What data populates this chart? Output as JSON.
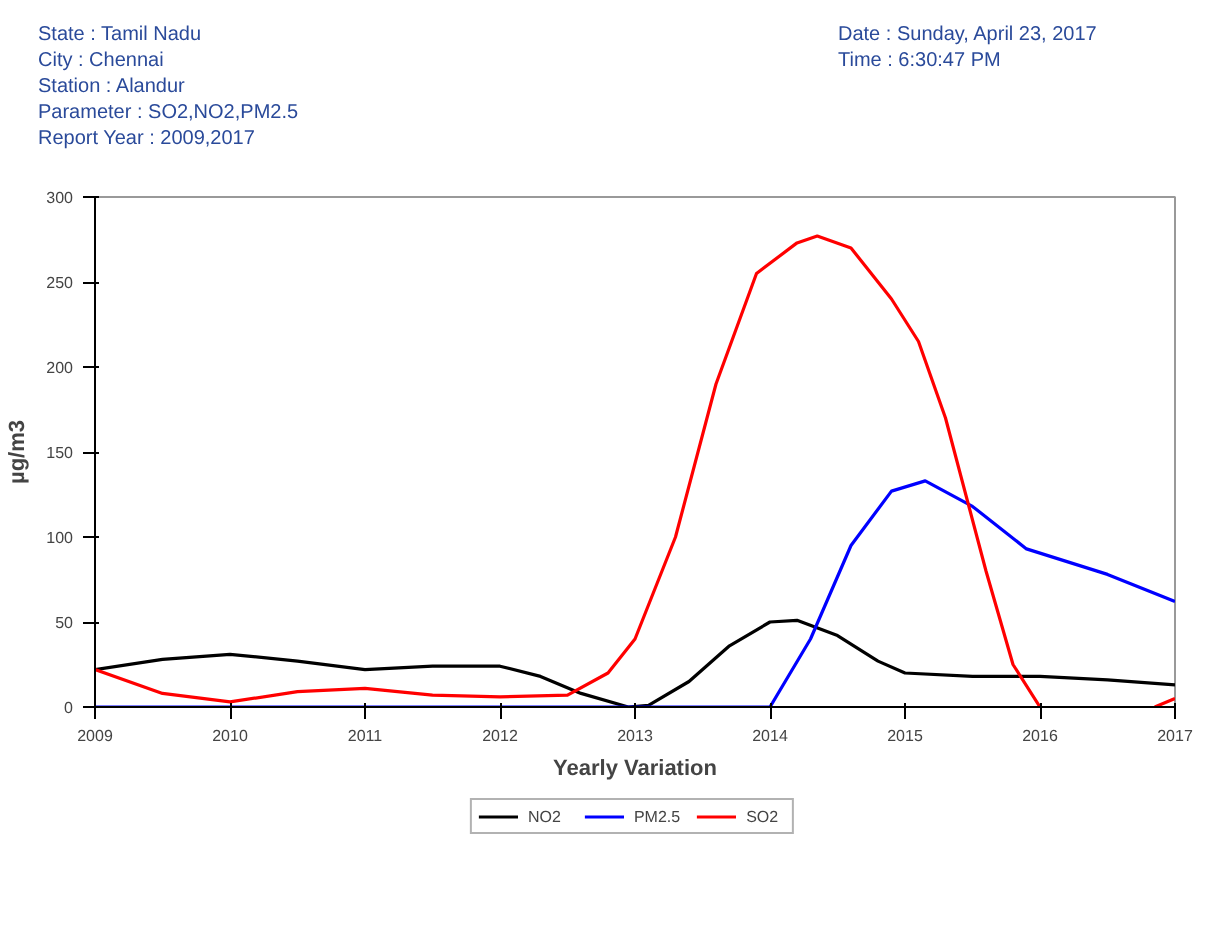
{
  "chart_data": {
    "type": "line",
    "xlabel": "Yearly Variation",
    "ylabel": "µg/m3",
    "annotations": [
      "State : Tamil Nadu",
      "City : Chennai",
      "Station : Alandur",
      "Parameter : SO2,NO2,PM2.5",
      "Report Year : 2009,2017",
      "Date : Sunday, April 23, 2017",
      "Time : 6:30:47 PM"
    ],
    "xlim": [
      2009,
      2017
    ],
    "xticks": [
      2009,
      2010,
      2011,
      2012,
      2013,
      2014,
      2015,
      2016,
      2017
    ],
    "ylim": [
      0,
      300
    ],
    "yticks": [
      0,
      50,
      100,
      150,
      200,
      250,
      300
    ],
    "grid": false,
    "legend": "bottom",
    "line_style": "solid",
    "series": [
      {
        "name": "NO2",
        "color": "#000000",
        "x": [
          2009,
          2009.5,
          2010,
          2010.5,
          2011,
          2011.5,
          2012,
          2012.3,
          2012.6,
          2012.95,
          2013.1,
          2013.4,
          2013.7,
          2014,
          2014.2,
          2014.5,
          2014.8,
          2015,
          2015.5,
          2016,
          2016.5,
          2017
        ],
        "values": [
          22,
          28,
          31,
          27,
          22,
          24,
          24,
          18,
          8,
          0,
          1,
          15,
          36,
          50,
          51,
          42,
          27,
          20,
          18,
          18,
          16,
          13
        ]
      },
      {
        "name": "PM2.5",
        "color": "#0000ff",
        "x": [
          2009,
          2010,
          2011,
          2012,
          2013,
          2014,
          2014.3,
          2014.6,
          2014.9,
          2015.15,
          2015.5,
          2015.9,
          2016.5,
          2017
        ],
        "values": [
          0,
          0,
          0,
          0,
          0,
          0,
          40,
          95,
          127,
          133,
          118,
          93,
          78,
          62
        ]
      },
      {
        "name": "SO2",
        "color": "#ff0000",
        "x": [
          2009,
          2009.5,
          2010,
          2010.5,
          2011,
          2011.5,
          2012,
          2012.5,
          2012.8,
          2013,
          2013.3,
          2013.6,
          2013.9,
          2014.2,
          2014.35,
          2014.6,
          2014.9,
          2015.1,
          2015.3,
          2015.6,
          2015.8,
          2016,
          2016.4,
          2016.85,
          2017
        ],
        "values": [
          22,
          8,
          3,
          9,
          11,
          7,
          6,
          7,
          20,
          40,
          100,
          190,
          255,
          273,
          277,
          270,
          240,
          215,
          170,
          80,
          25,
          0,
          null,
          0,
          5
        ]
      }
    ]
  }
}
